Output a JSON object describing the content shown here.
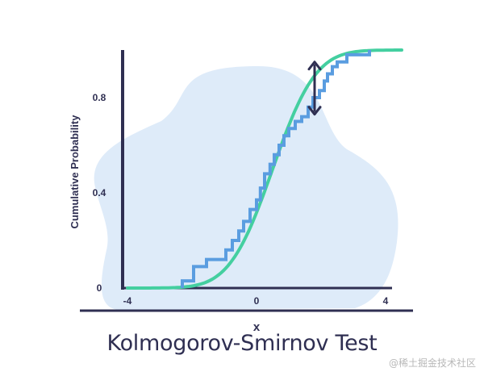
{
  "caption": "Kolmogorov-Smirnov Test",
  "watermark": "@稀土掘金技术社区",
  "chart_data": {
    "type": "line",
    "title": "Kolmogorov-Smirnov Test",
    "xlabel": "x",
    "ylabel": "Cumulative Probability",
    "xlim": [
      -4,
      4.5
    ],
    "ylim": [
      0,
      1
    ],
    "x_ticks": [
      -4,
      0,
      4
    ],
    "x_tick_labels": [
      "-4",
      "0",
      "4"
    ],
    "y_ticks": [
      0,
      0.4,
      0.8
    ],
    "y_tick_labels": [
      "0",
      "0.4",
      "0.8"
    ],
    "grid": false,
    "legend": "none",
    "colors": {
      "theoretical_cdf": "#44cfa0",
      "empirical_cdf": "#5a9de0",
      "axes": "#2f2f52",
      "background_blob": "#deebf9",
      "arrow": "#2f2f52"
    },
    "series": [
      {
        "kind": "theoretical_cdf",
        "mean": 0.5,
        "sd": 1.05,
        "x_range": [
          -4,
          4.5
        ]
      },
      {
        "kind": "empirical_cdf",
        "x": [
          -2.3,
          -2.3,
          -1.95,
          -1.95,
          -1.55,
          -1.55,
          -1.15,
          -1.15,
          -0.95,
          -0.95,
          -0.75,
          -0.75,
          -0.55,
          -0.55,
          -0.4,
          -0.4,
          -0.2,
          -0.2,
          0,
          0,
          0.12,
          0.12,
          0.25,
          0.25,
          0.42,
          0.42,
          0.55,
          0.55,
          0.7,
          0.7,
          0.85,
          0.85,
          1.0,
          1.0,
          1.2,
          1.2,
          1.4,
          1.4,
          1.6,
          1.6,
          1.75,
          1.75,
          1.95,
          1.95,
          2.1,
          2.1,
          2.2,
          2.2,
          2.35,
          2.35,
          2.5,
          2.5,
          2.8,
          2.8,
          3.5,
          3.5
        ],
        "y": [
          0,
          0.03,
          0.03,
          0.09,
          0.09,
          0.12,
          0.12,
          0.12,
          0.12,
          0.16,
          0.16,
          0.2,
          0.2,
          0.24,
          0.24,
          0.28,
          0.28,
          0.33,
          0.33,
          0.37,
          0.37,
          0.42,
          0.42,
          0.48,
          0.48,
          0.52,
          0.52,
          0.56,
          0.56,
          0.6,
          0.6,
          0.64,
          0.64,
          0.67,
          0.67,
          0.7,
          0.7,
          0.72,
          0.72,
          0.76,
          0.76,
          0.8,
          0.8,
          0.83,
          0.83,
          0.87,
          0.87,
          0.9,
          0.9,
          0.93,
          0.93,
          0.95,
          0.95,
          0.98,
          0.98,
          1.0
        ]
      }
    ],
    "annotations": [
      {
        "kind": "double-arrow",
        "x": 1.8,
        "y_from": 0.73,
        "y_to": 0.95
      }
    ]
  }
}
